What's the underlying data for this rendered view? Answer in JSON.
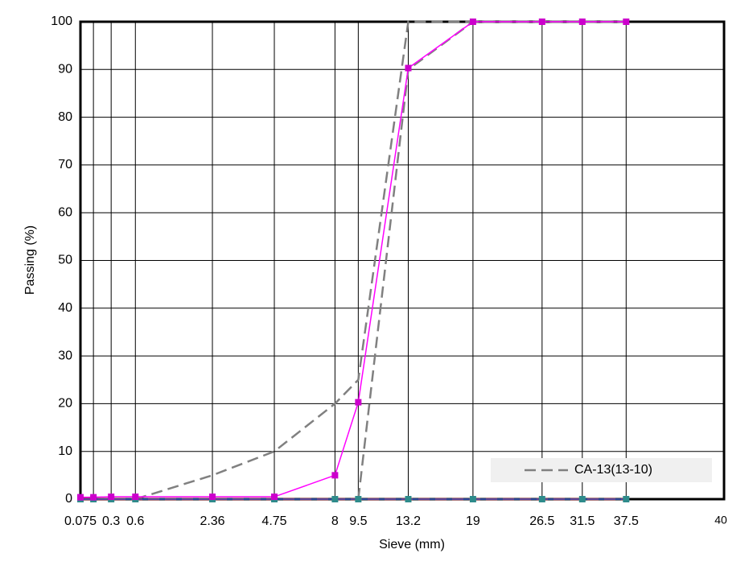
{
  "chart_data": {
    "type": "line",
    "x_scale": "power",
    "x_power": 0.45,
    "xlabel": "Sieve (mm)",
    "ylabel": "Passing (%)",
    "xlim": [
      0.075,
      53
    ],
    "ylim": [
      0,
      100
    ],
    "xticks": [
      0.075,
      {
        "value": 0.15,
        "label": null
      },
      0.3,
      0.6,
      2.36,
      4.75,
      8,
      9.5,
      13.2,
      19,
      26.5,
      31.5,
      37.5
    ],
    "x_end_label": "40",
    "yticks": [
      0,
      10,
      20,
      30,
      40,
      50,
      60,
      70,
      80,
      90,
      100
    ],
    "grid": true,
    "legend": "lower right",
    "series": [
      {
        "name": "CA-13(13-10)",
        "color": "#808080",
        "dash": true,
        "marker": false,
        "x": [
          0.6,
          2.36,
          4.75,
          8,
          9.5,
          13.2,
          19,
          26.5,
          31.5,
          37.5
        ],
        "values": [
          0,
          5,
          10,
          20,
          25,
          100,
          100,
          100,
          100,
          100
        ]
      },
      {
        "color": "#808080",
        "dash": true,
        "marker": false,
        "x": [
          9.5,
          13.2,
          19,
          26.5,
          31.5,
          37.5
        ],
        "values": [
          0,
          90,
          100,
          100,
          100,
          100
        ]
      },
      {
        "color": "#c00000",
        "dash": true,
        "marker": false,
        "x": [
          0.075,
          0.15,
          0.3,
          0.6,
          2.36,
          4.75,
          8,
          9.5,
          13.2,
          19,
          26.5,
          31.5,
          37.5
        ],
        "values": [
          0,
          0,
          0,
          0,
          0,
          0,
          0,
          0,
          0,
          0,
          0,
          0,
          0
        ]
      },
      {
        "color": "#3a5fcd",
        "marker_color": "#2e8b8b",
        "dash": false,
        "marker": true,
        "x": [
          0.075,
          0.15,
          0.3,
          0.6,
          2.36,
          4.75,
          8,
          9.5,
          13.2,
          19,
          26.5,
          31.5,
          37.5
        ],
        "values": [
          0,
          0,
          0,
          0,
          0,
          0,
          0,
          0,
          0,
          0,
          0,
          0,
          0
        ]
      },
      {
        "color": "#ff00ff",
        "marker_color": "#cc00cc",
        "dash": false,
        "marker": true,
        "x": [
          0.075,
          0.15,
          0.3,
          0.6,
          2.36,
          4.75,
          8,
          9.5,
          13.2,
          19,
          26.5,
          31.5,
          37.5
        ],
        "values": [
          0.4,
          0.4,
          0.5,
          0.5,
          0.5,
          0.5,
          5,
          20.3,
          90.3,
          100,
          100,
          100,
          100
        ]
      }
    ]
  }
}
